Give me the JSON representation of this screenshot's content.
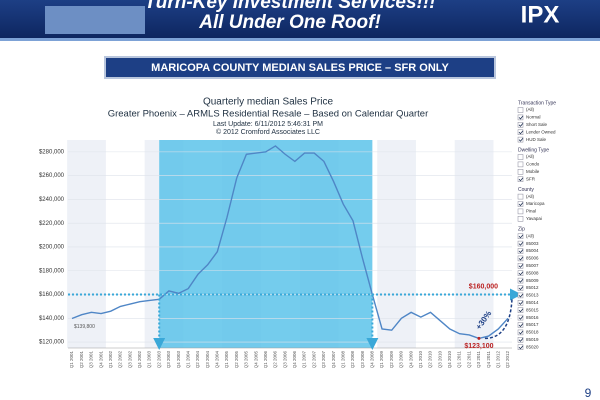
{
  "banner": {
    "line1": "Turn-Key Investment Services!!!",
    "line2": "All Under One Roof!",
    "logo": "IPX"
  },
  "ribbon": "MARICOPA COUNTY MEDIAN SALES PRICE – SFR ONLY",
  "chart_data": {
    "type": "line",
    "title": "Quarterly median Sales Price",
    "subtitle": "Greater Phoenix – ARMLS Residential Resale – Based on Calendar Quarter",
    "notes": [
      "Last Update: 6/11/2012 5:46:31 PM",
      "© 2012 Cromford Associates LLC"
    ],
    "categories": [
      "Q1 2001",
      "Q2 2001",
      "Q3 2001",
      "Q4 2001",
      "Q1 2002",
      "Q2 2002",
      "Q3 2002",
      "Q4 2002",
      "Q1 2003",
      "Q2 2003",
      "Q3 2003",
      "Q4 2003",
      "Q1 2004",
      "Q2 2004",
      "Q3 2004",
      "Q4 2004",
      "Q1 2005",
      "Q2 2005",
      "Q3 2005",
      "Q4 2005",
      "Q1 2006",
      "Q2 2006",
      "Q3 2006",
      "Q4 2006",
      "Q1 2007",
      "Q2 2007",
      "Q3 2007",
      "Q4 2007",
      "Q1 2008",
      "Q2 2008",
      "Q3 2008",
      "Q4 2008",
      "Q1 2009",
      "Q2 2009",
      "Q3 2009",
      "Q4 2009",
      "Q1 2010",
      "Q2 2010",
      "Q3 2010",
      "Q4 2010",
      "Q1 2011",
      "Q2 2011",
      "Q3 2011",
      "Q4 2011",
      "Q1 2012",
      "Q2 2012"
    ],
    "series": [
      {
        "color": "#4f86c6",
        "values": [
          139800,
          143000,
          145000,
          144000,
          146000,
          150000,
          152000,
          154000,
          155000,
          156000,
          163000,
          161000,
          165000,
          177000,
          185000,
          196000,
          225000,
          258000,
          278000,
          279000,
          280000,
          285000,
          278000,
          272000,
          279000,
          279000,
          272000,
          255000,
          236000,
          222000,
          190000,
          160000,
          131000,
          130000,
          140000,
          145000,
          141000,
          145000,
          138000,
          131000,
          127000,
          126000,
          123100,
          125000,
          131000,
          140000
        ]
      }
    ],
    "value_labels": [
      {
        "index": 0,
        "label": "$139,800"
      }
    ],
    "ylim": [
      115000,
      290000
    ],
    "yticks": [
      {
        "value": 120000,
        "label": "$120,000"
      },
      {
        "value": 140000,
        "label": "$140,000"
      },
      {
        "value": 160000,
        "label": "$160,000"
      },
      {
        "value": 180000,
        "label": "$180,000"
      },
      {
        "value": 200000,
        "label": "$200,000"
      },
      {
        "value": 220000,
        "label": "$220,000"
      },
      {
        "value": 240000,
        "label": "$240,000"
      },
      {
        "value": 260000,
        "label": "$260,000"
      },
      {
        "value": 280000,
        "label": "$280,000"
      }
    ],
    "highlight": {
      "from": "Q2 2003",
      "to": "Q4 2008",
      "color": "#5cc3ea"
    },
    "reference_line": {
      "value": 160000,
      "label": "$160,000"
    },
    "low_label": {
      "value": 123100,
      "label": "$123,100"
    },
    "change_label": {
      "value": 30,
      "label": "+30%"
    }
  },
  "filters": [
    {
      "title": "Transaction Type",
      "options": [
        {
          "label": "(All)",
          "checked": false
        },
        {
          "label": "Normal",
          "checked": true
        },
        {
          "label": "Short Sale",
          "checked": true
        },
        {
          "label": "Lender Owned",
          "checked": true
        },
        {
          "label": "HUD Sale",
          "checked": true
        }
      ]
    },
    {
      "title": "Dwelling Type",
      "options": [
        {
          "label": "(All)",
          "checked": false
        },
        {
          "label": "Condo",
          "checked": false
        },
        {
          "label": "Mobile",
          "checked": false
        },
        {
          "label": "SFR",
          "checked": true
        }
      ]
    },
    {
      "title": "County",
      "options": [
        {
          "label": "(All)",
          "checked": false
        },
        {
          "label": "Maricopa",
          "checked": true
        },
        {
          "label": "Pinal",
          "checked": false
        },
        {
          "label": "Yavapai",
          "checked": false
        }
      ]
    },
    {
      "title": "Zip",
      "options": [
        {
          "label": "(All)",
          "checked": true
        },
        {
          "label": "85003",
          "checked": true
        },
        {
          "label": "85004",
          "checked": true
        },
        {
          "label": "85006",
          "checked": true
        },
        {
          "label": "85007",
          "checked": true
        },
        {
          "label": "85008",
          "checked": true
        },
        {
          "label": "85009",
          "checked": true
        },
        {
          "label": "85012",
          "checked": true
        },
        {
          "label": "85013",
          "checked": true
        },
        {
          "label": "85014",
          "checked": true
        },
        {
          "label": "85015",
          "checked": true
        },
        {
          "label": "85016",
          "checked": true
        },
        {
          "label": "85017",
          "checked": true
        },
        {
          "label": "85018",
          "checked": true
        },
        {
          "label": "85019",
          "checked": true
        },
        {
          "label": "85020",
          "checked": true
        }
      ]
    }
  ],
  "page_number": "9"
}
